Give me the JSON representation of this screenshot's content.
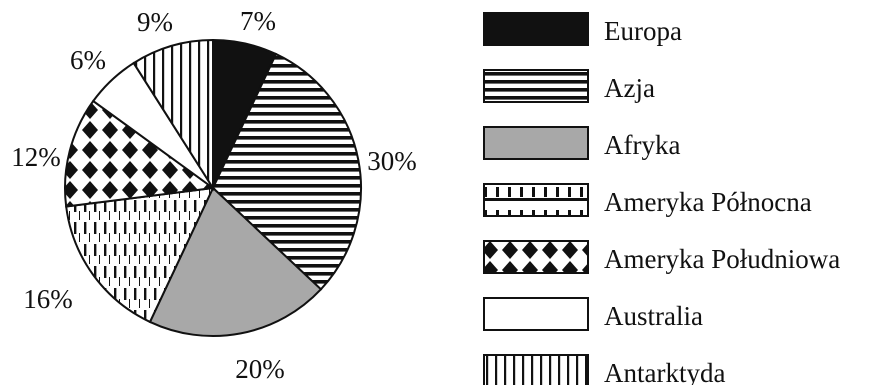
{
  "chart_data": {
    "type": "pie",
    "categories": [
      "Europa",
      "Azja",
      "Afryka",
      "Ameryka Północna",
      "Ameryka Południowa",
      "Australia",
      "Antarktyda"
    ],
    "values": [
      7,
      30,
      20,
      16,
      12,
      6,
      9
    ],
    "value_labels": [
      "7%",
      "30%",
      "20%",
      "16%",
      "12%",
      "6%",
      "9%"
    ],
    "legend_position": "right",
    "fills": [
      "solid black",
      "horizontal stripes",
      "solid gray",
      "vertical dashes",
      "diamond checker",
      "white",
      "vertical stripes"
    ],
    "colors": [
      "#111111",
      "#111111",
      "#a8a8a8",
      "#111111",
      "#111111",
      "#ffffff",
      "#111111"
    ]
  }
}
